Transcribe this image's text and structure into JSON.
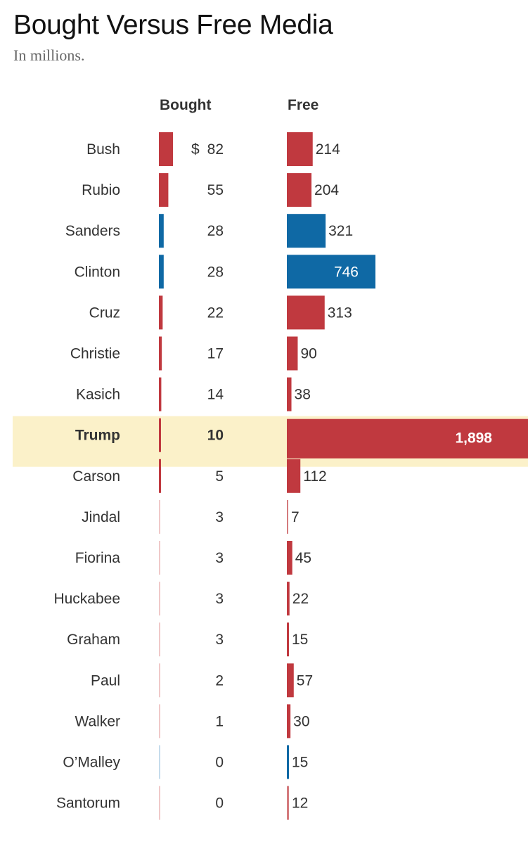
{
  "chart_data": {
    "type": "bar",
    "title": "Bought Versus Free Media",
    "subtitle": "In millions.",
    "columns": [
      "Bought",
      "Free"
    ],
    "currency_prefix": "$",
    "categories": [
      "Bush",
      "Rubio",
      "Sanders",
      "Clinton",
      "Cruz",
      "Christie",
      "Kasich",
      "Trump",
      "Carson",
      "Jindal",
      "Fiorina",
      "Huckabee",
      "Graham",
      "Paul",
      "Walker",
      "O’Malley",
      "Santorum"
    ],
    "party": [
      "R",
      "R",
      "D",
      "D",
      "R",
      "R",
      "R",
      "R",
      "R",
      "R",
      "R",
      "R",
      "R",
      "R",
      "R",
      "D",
      "R"
    ],
    "series": [
      {
        "name": "Bought",
        "values": [
          82,
          55,
          28,
          28,
          22,
          17,
          14,
          10,
          5,
          3,
          3,
          3,
          3,
          2,
          1,
          0,
          0
        ]
      },
      {
        "name": "Free",
        "values": [
          214,
          204,
          321,
          746,
          313,
          90,
          38,
          1898,
          112,
          7,
          45,
          22,
          15,
          57,
          30,
          15,
          12
        ]
      }
    ],
    "highlight": "Trump",
    "colors": {
      "R": "#c0393f",
      "D": "#0f69a5",
      "R_faint": "#f0c9c9",
      "D_faint": "#c6dcec",
      "highlight_bg": "#fbf1c9"
    }
  }
}
